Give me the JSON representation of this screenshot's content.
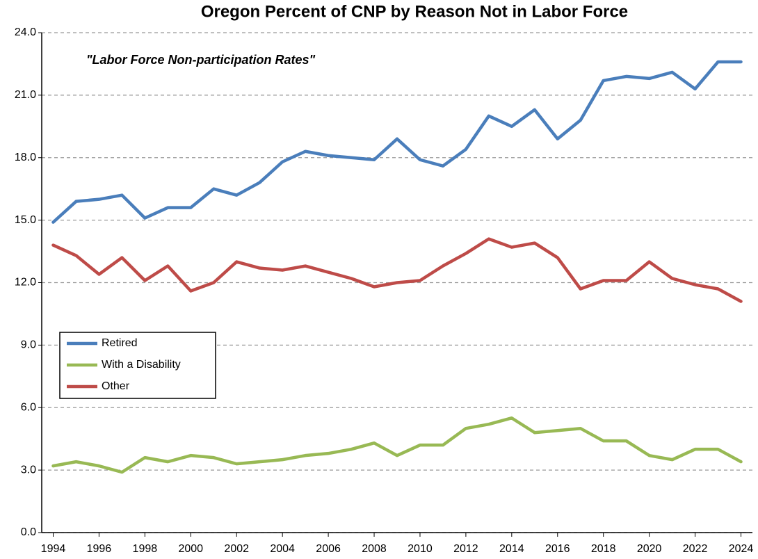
{
  "chart_data": {
    "type": "line",
    "title": "Oregon Percent of CNP by Reason Not in Labor Force",
    "annotation": "\"Labor Force Non-participation Rates\"",
    "x": [
      1994,
      1995,
      1996,
      1997,
      1998,
      1999,
      2000,
      2001,
      2002,
      2003,
      2004,
      2005,
      2006,
      2007,
      2008,
      2009,
      2010,
      2011,
      2012,
      2013,
      2014,
      2015,
      2016,
      2017,
      2018,
      2019,
      2020,
      2021,
      2022,
      2023,
      2024
    ],
    "series": [
      {
        "name": "Retired",
        "color": "#4a7ebb",
        "values": [
          14.9,
          15.9,
          16.0,
          16.2,
          15.1,
          15.6,
          15.6,
          16.5,
          16.2,
          16.8,
          17.8,
          18.3,
          18.1,
          18.0,
          17.9,
          18.9,
          17.9,
          17.6,
          18.4,
          20.0,
          19.5,
          20.3,
          18.9,
          19.8,
          21.7,
          21.9,
          21.8,
          22.1,
          21.3,
          22.6,
          22.6
        ]
      },
      {
        "name": "With a Disability",
        "color": "#98b954",
        "values": [
          3.2,
          3.4,
          3.2,
          2.9,
          3.6,
          3.4,
          3.7,
          3.6,
          3.3,
          3.4,
          3.5,
          3.7,
          3.8,
          4.0,
          4.3,
          3.7,
          4.2,
          4.2,
          5.0,
          5.2,
          5.5,
          4.8,
          4.9,
          5.0,
          4.4,
          4.4,
          3.7,
          3.5,
          4.0,
          4.0,
          3.4
        ]
      },
      {
        "name": "Other",
        "color": "#be4b48",
        "values": [
          13.8,
          13.3,
          12.4,
          13.2,
          12.1,
          12.8,
          11.6,
          12.0,
          13.0,
          12.7,
          12.6,
          12.8,
          12.5,
          12.2,
          11.8,
          12.0,
          12.1,
          12.8,
          13.4,
          14.1,
          13.7,
          13.9,
          13.2,
          11.7,
          12.1,
          12.1,
          13.0,
          12.2,
          11.9,
          11.7,
          11.1
        ]
      }
    ],
    "xlim": [
      1993.5,
      2024.5
    ],
    "xticks": [
      1994,
      1996,
      1998,
      2000,
      2002,
      2004,
      2006,
      2008,
      2010,
      2012,
      2014,
      2016,
      2018,
      2020,
      2022,
      2024
    ],
    "ylim": [
      0,
      24
    ],
    "yticks": [
      {
        "value": 0,
        "label": "0.0"
      },
      {
        "value": 3,
        "label": "3.0"
      },
      {
        "value": 6,
        "label": "6.0"
      },
      {
        "value": 9,
        "label": "9.0"
      },
      {
        "value": 12,
        "label": "12.0"
      },
      {
        "value": 15,
        "label": "15.0"
      },
      {
        "value": 18,
        "label": "18.0"
      },
      {
        "value": 21,
        "label": "21.0"
      },
      {
        "value": 24,
        "label": "24.0"
      }
    ],
    "grid": true,
    "legend": "left"
  }
}
